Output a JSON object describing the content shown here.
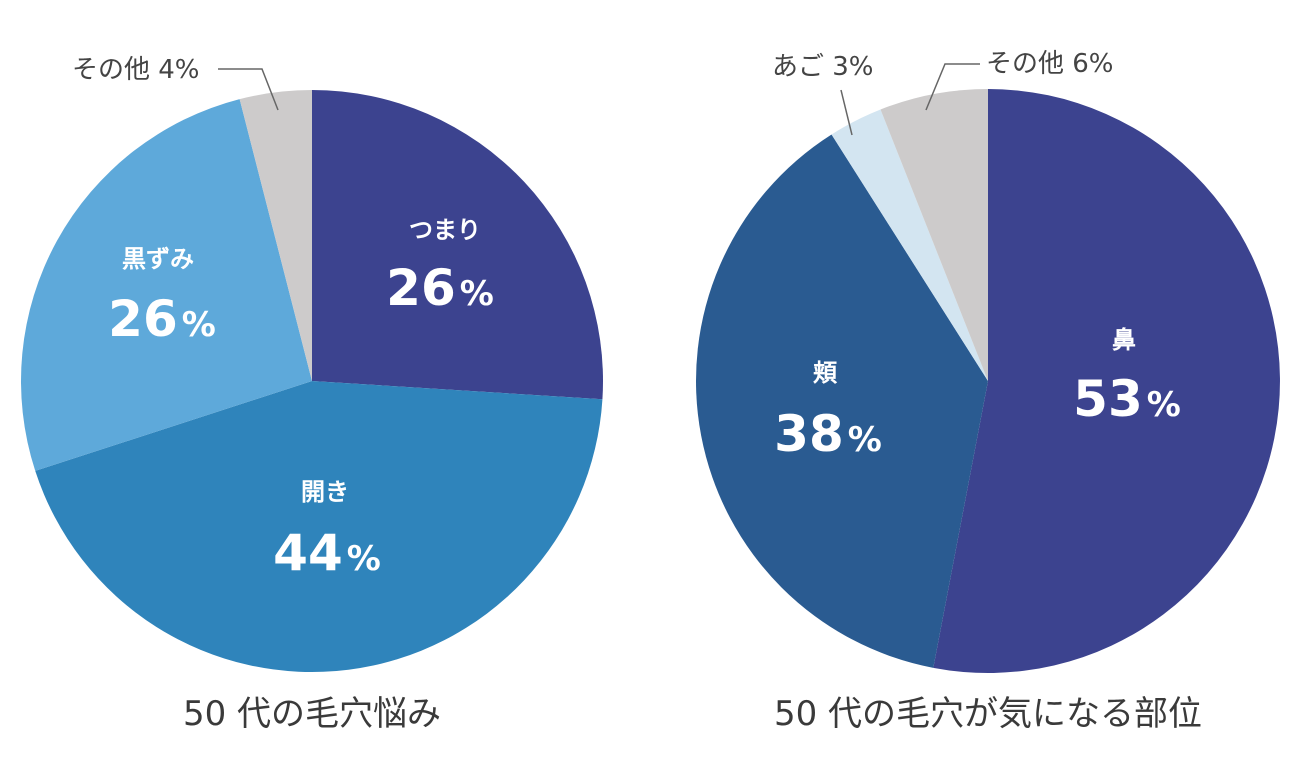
{
  "chart_data": [
    {
      "type": "pie",
      "title": "50 代の毛穴悩み",
      "slices": [
        {
          "label": "つまり",
          "value": 26,
          "display": "26",
          "unit": "%",
          "color": "#3c438f",
          "label_position": "inside"
        },
        {
          "label": "開き",
          "value": 44,
          "display": "44",
          "unit": "%",
          "color": "#2f84bb",
          "label_position": "inside"
        },
        {
          "label": "黒ずみ",
          "value": 26,
          "display": "26",
          "unit": "%",
          "color": "#5ea9da",
          "label_position": "inside"
        },
        {
          "label": "その他",
          "value": 4,
          "display": "4",
          "unit": "%",
          "color": "#cdcbcb",
          "label_position": "outside",
          "outside_text": "その他 4%"
        }
      ]
    },
    {
      "type": "pie",
      "title": "50 代の毛穴が気になる部位",
      "slices": [
        {
          "label": "鼻",
          "value": 53,
          "display": "53",
          "unit": "%",
          "color": "#3c438f",
          "label_position": "inside"
        },
        {
          "label": "頬",
          "value": 38,
          "display": "38",
          "unit": "%",
          "color": "#2a5b91",
          "label_position": "inside"
        },
        {
          "label": "あご",
          "value": 3,
          "display": "3",
          "unit": "%",
          "color": "#d3e5f1",
          "label_position": "outside",
          "outside_text": "あご 3%"
        },
        {
          "label": "その他",
          "value": 6,
          "display": "6",
          "unit": "%",
          "color": "#cdcbcb",
          "label_position": "outside",
          "outside_text": "その他 6%"
        }
      ]
    }
  ]
}
